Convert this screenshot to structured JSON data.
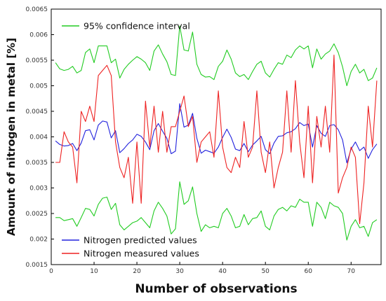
{
  "chart_data": {
    "type": "line",
    "xlabel": "Number of observations",
    "ylabel": "Amount of nitrogen in metal [%]",
    "xlim": [
      0,
      77
    ],
    "ylim": [
      0.0015,
      0.0065
    ],
    "x_ticks": [
      0,
      10,
      20,
      30,
      40,
      50,
      60,
      70
    ],
    "x_tick_labels": [
      "0",
      "10",
      "20",
      "30",
      "40",
      "50",
      "60",
      "70"
    ],
    "y_ticks": [
      0.0015,
      0.002,
      0.0025,
      0.003,
      0.0035,
      0.004,
      0.0045,
      0.005,
      0.0055,
      0.006,
      0.0065
    ],
    "y_tick_labels": [
      "0.0015",
      "0.002",
      "0.0025",
      "0.003",
      "0.0035",
      "0.004",
      "0.0045",
      "0.005",
      "0.0055",
      "0.006",
      "0.0065"
    ],
    "grid": false,
    "legend": {
      "upper": {
        "placement": "top-left",
        "entries": [
          {
            "label": "95% confidence interval",
            "color": "#22cc22"
          }
        ]
      },
      "lower": {
        "placement": "bottom-left",
        "entries": [
          {
            "label": "Nitrogen predicted values",
            "color": "#2222dd"
          },
          {
            "label": "Nitrogen measured values",
            "color": "#ee2222"
          }
        ]
      }
    },
    "x": [
      1,
      2,
      3,
      4,
      5,
      6,
      7,
      8,
      9,
      10,
      11,
      12,
      13,
      14,
      15,
      16,
      17,
      18,
      19,
      20,
      21,
      22,
      23,
      24,
      25,
      26,
      27,
      28,
      29,
      30,
      31,
      32,
      33,
      34,
      35,
      36,
      37,
      38,
      39,
      40,
      41,
      42,
      43,
      44,
      45,
      46,
      47,
      48,
      49,
      50,
      51,
      52,
      53,
      54,
      55,
      56,
      57,
      58,
      59,
      60,
      61,
      62,
      63,
      64,
      65,
      66,
      67,
      68,
      69,
      70,
      71,
      72,
      73,
      74,
      75,
      76
    ],
    "series": [
      {
        "name": "95% confidence interval",
        "color": "#22cc22",
        "values": [
          0.00545,
          0.00533,
          0.0053,
          0.00532,
          0.00538,
          0.00525,
          0.0053,
          0.00565,
          0.00572,
          0.00545,
          0.00578,
          0.00578,
          0.00578,
          0.00545,
          0.00552,
          0.00515,
          0.00532,
          0.00542,
          0.0055,
          0.00557,
          0.00552,
          0.00545,
          0.0053,
          0.00568,
          0.0058,
          0.00562,
          0.00547,
          0.00522,
          0.0052,
          0.00617,
          0.0057,
          0.00568,
          0.00605,
          0.00542,
          0.00522,
          0.00517,
          0.00518,
          0.00512,
          0.00538,
          0.00548,
          0.0057,
          0.00552,
          0.00525,
          0.00518,
          0.00522,
          0.00512,
          0.00528,
          0.00542,
          0.00548,
          0.00525,
          0.00517,
          0.00532,
          0.00545,
          0.00542,
          0.0056,
          0.00555,
          0.0057,
          0.00578,
          0.00572,
          0.00578,
          0.00535,
          0.00572,
          0.00552,
          0.00562,
          0.00568,
          0.00582,
          0.00565,
          0.00537,
          0.005,
          0.00528,
          0.00542,
          0.00525,
          0.00532,
          0.0051,
          0.00515,
          0.00535
        ]
      },
      {
        "name": "",
        "color": "#22cc22",
        "values": [
          0.00242,
          0.00242,
          0.00236,
          0.00238,
          0.0024,
          0.00225,
          0.00242,
          0.0026,
          0.00258,
          0.00245,
          0.00268,
          0.0028,
          0.00282,
          0.00258,
          0.0027,
          0.00228,
          0.00218,
          0.00225,
          0.00232,
          0.00235,
          0.00242,
          0.00232,
          0.00222,
          0.00255,
          0.00272,
          0.0026,
          0.00245,
          0.0021,
          0.0022,
          0.00312,
          0.00268,
          0.00275,
          0.00302,
          0.0025,
          0.00215,
          0.00228,
          0.00222,
          0.00225,
          0.00222,
          0.0025,
          0.0026,
          0.00245,
          0.00222,
          0.00225,
          0.00248,
          0.00228,
          0.0024,
          0.00242,
          0.00255,
          0.00225,
          0.00218,
          0.00245,
          0.00258,
          0.00262,
          0.00255,
          0.00265,
          0.00262,
          0.00278,
          0.00272,
          0.00272,
          0.00225,
          0.00272,
          0.00262,
          0.0024,
          0.00272,
          0.00265,
          0.00262,
          0.0025,
          0.00198,
          0.00225,
          0.00238,
          0.00222,
          0.00225,
          0.00205,
          0.00232,
          0.00238
        ]
      },
      {
        "name": "Nitrogen predicted values",
        "color": "#2222dd",
        "values": [
          0.00392,
          0.00385,
          0.00382,
          0.00383,
          0.00387,
          0.00373,
          0.00388,
          0.00412,
          0.00414,
          0.00394,
          0.00423,
          0.00431,
          0.00429,
          0.00398,
          0.00412,
          0.00369,
          0.00377,
          0.00387,
          0.00394,
          0.00405,
          0.00401,
          0.0039,
          0.00375,
          0.00412,
          0.00426,
          0.00411,
          0.00397,
          0.00367,
          0.00372,
          0.00465,
          0.00419,
          0.00423,
          0.00446,
          0.00397,
          0.00368,
          0.00374,
          0.00371,
          0.00368,
          0.0038,
          0.00399,
          0.00415,
          0.00399,
          0.00376,
          0.00373,
          0.00387,
          0.00371,
          0.00384,
          0.00392,
          0.00401,
          0.00375,
          0.00367,
          0.00388,
          0.00401,
          0.00402,
          0.00408,
          0.0041,
          0.00416,
          0.00428,
          0.00422,
          0.00425,
          0.0038,
          0.00422,
          0.00407,
          0.00401,
          0.00422,
          0.00424,
          0.00414,
          0.00394,
          0.00349,
          0.00376,
          0.0039,
          0.00373,
          0.0038,
          0.00358,
          0.00375,
          0.00386
        ]
      },
      {
        "name": "Nitrogen measured values",
        "color": "#ee2222",
        "values": [
          0.0035,
          0.0035,
          0.0041,
          0.0039,
          0.0038,
          0.0031,
          0.0045,
          0.0043,
          0.0046,
          0.0043,
          0.0052,
          0.0053,
          0.0054,
          0.0052,
          0.0039,
          0.0034,
          0.0032,
          0.0036,
          0.0027,
          0.0039,
          0.0027,
          0.0047,
          0.0038,
          0.0046,
          0.0037,
          0.0045,
          0.0037,
          0.0042,
          0.0042,
          0.0045,
          0.0048,
          0.0042,
          0.0044,
          0.0035,
          0.0039,
          0.004,
          0.0041,
          0.0036,
          0.0049,
          0.0038,
          0.0034,
          0.0033,
          0.0036,
          0.0034,
          0.0043,
          0.0036,
          0.0038,
          0.0049,
          0.0037,
          0.0033,
          0.0039,
          0.003,
          0.0034,
          0.0037,
          0.0049,
          0.0037,
          0.0051,
          0.0039,
          0.0032,
          0.0046,
          0.0031,
          0.0044,
          0.0038,
          0.0046,
          0.0037,
          0.0056,
          0.0029,
          0.0032,
          0.0034,
          0.0038,
          0.0036,
          0.0023,
          0.0031,
          0.0046,
          0.0038,
          0.0051
        ]
      }
    ]
  }
}
